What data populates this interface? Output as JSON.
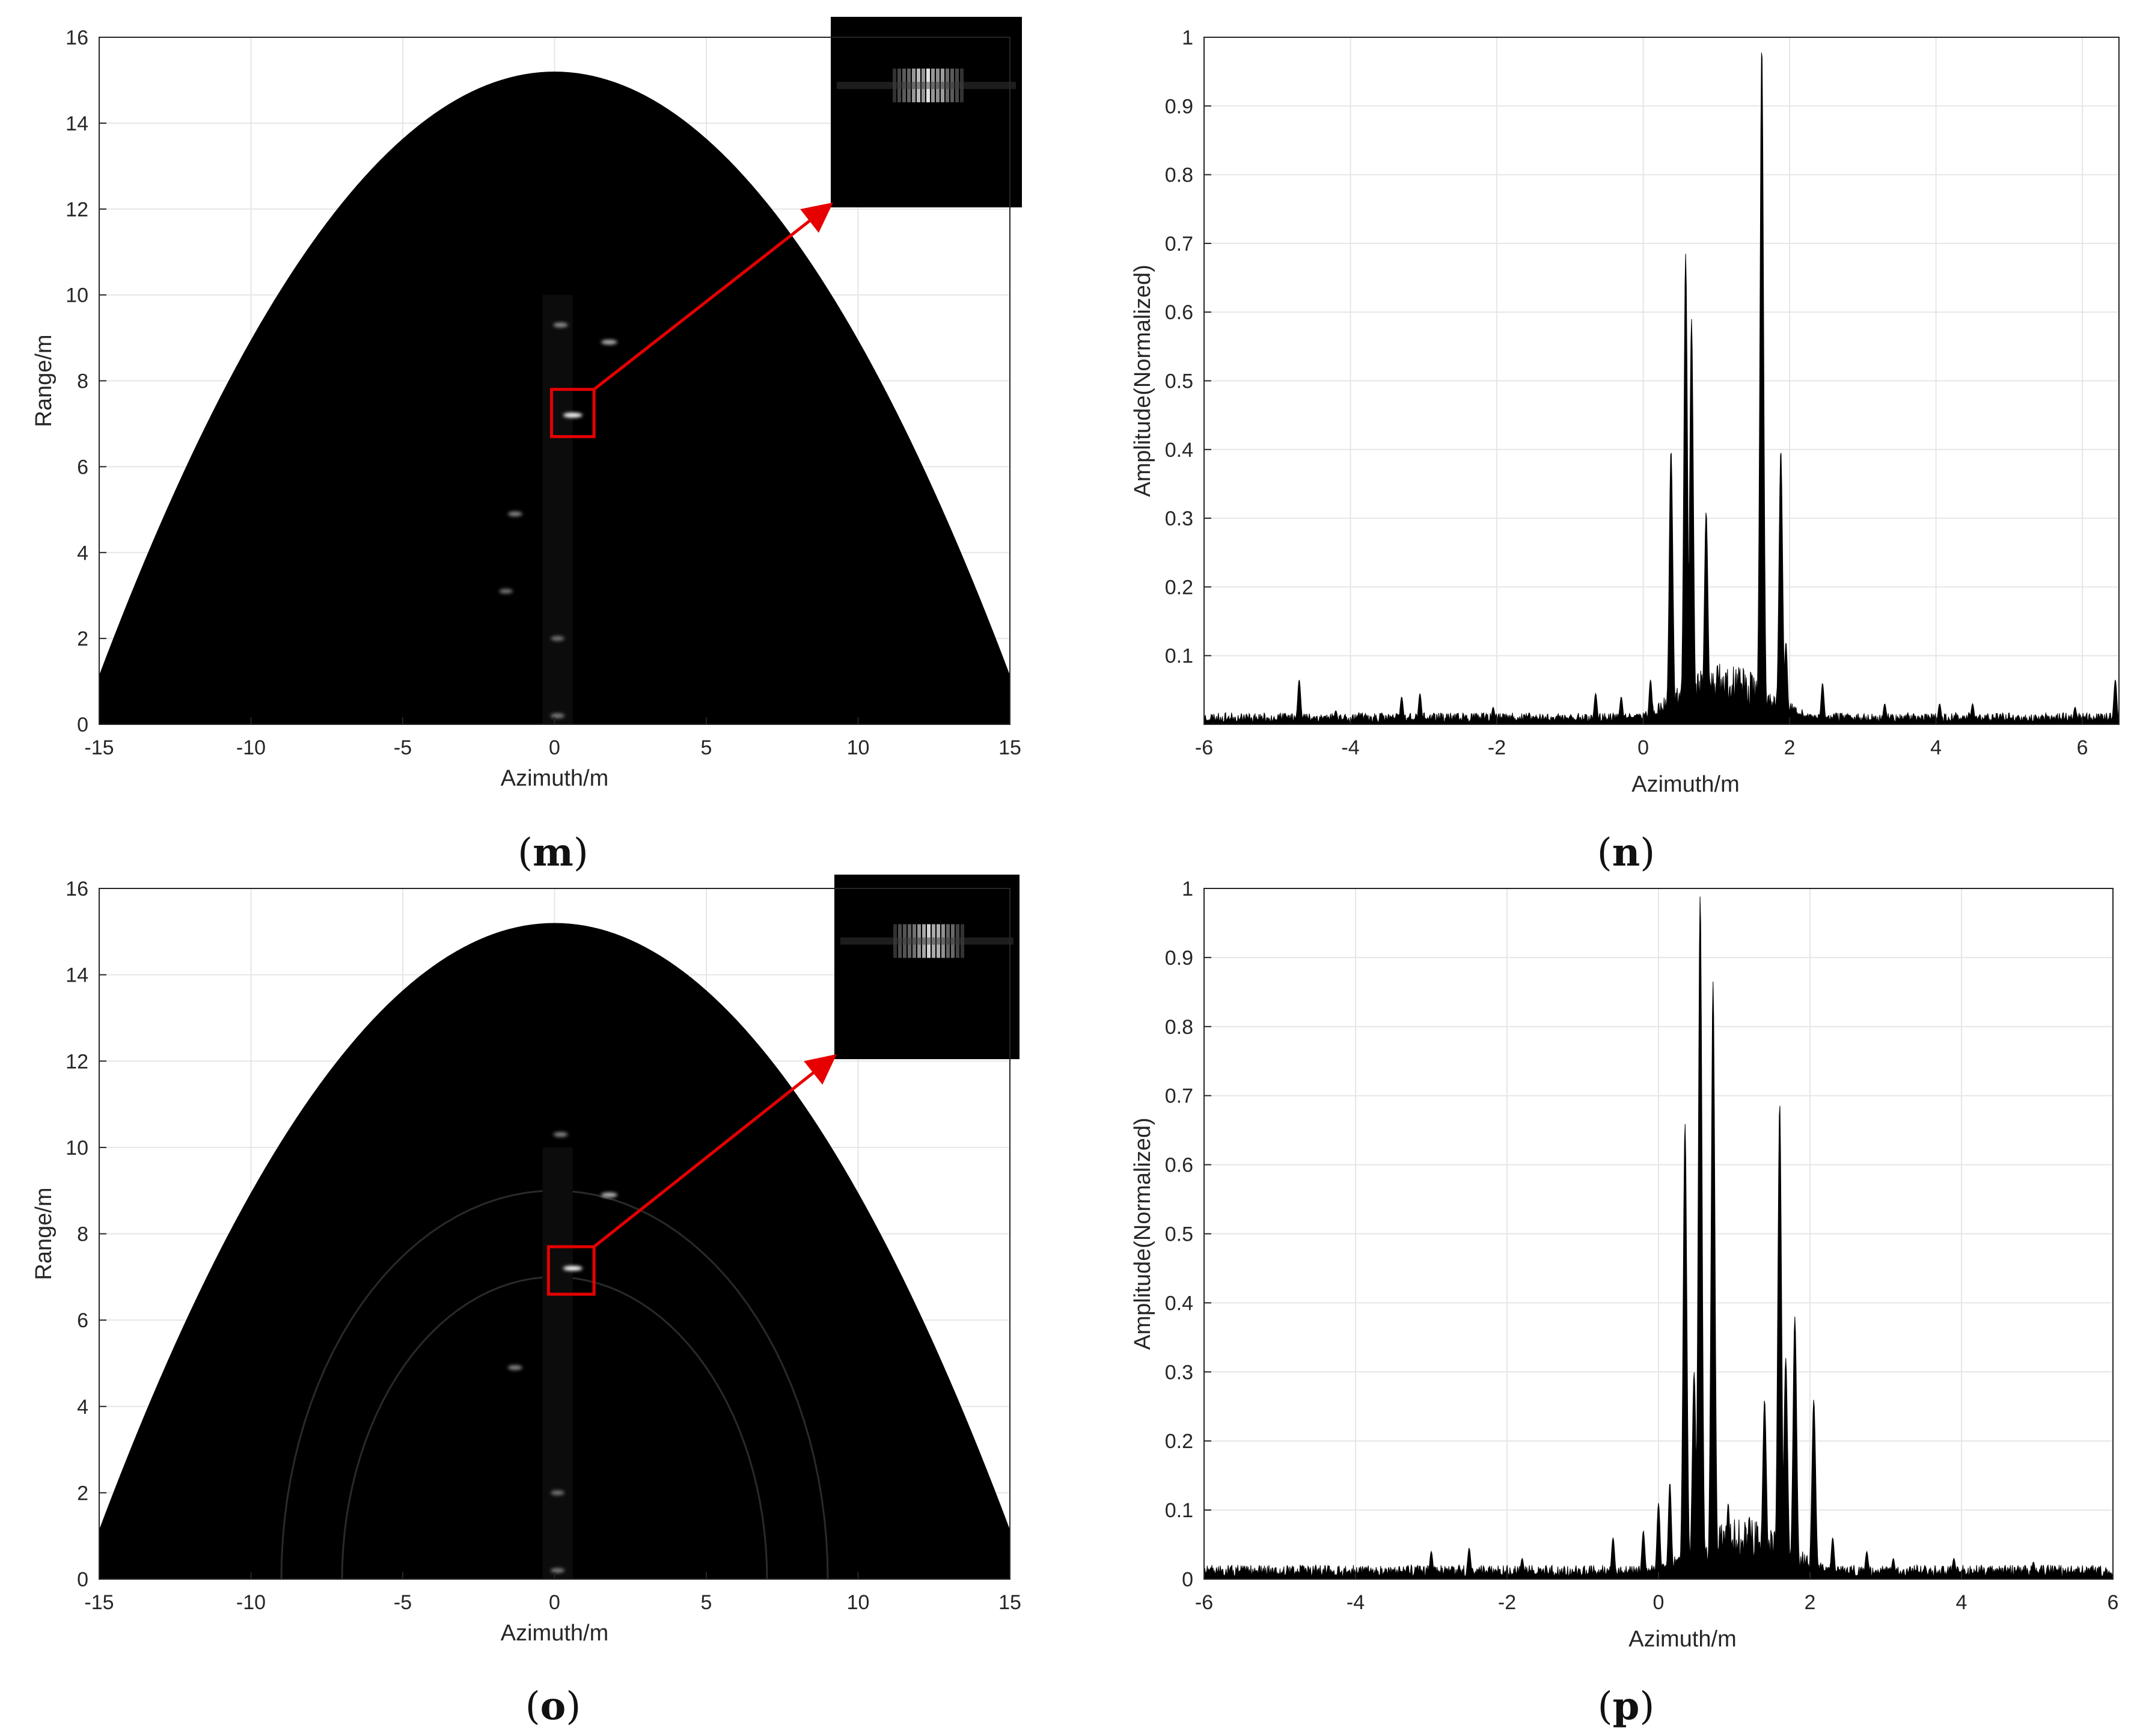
{
  "chart_data": [
    {
      "type": "heatmap",
      "panel_label": "m",
      "xlabel": "Azimuth/m",
      "ylabel": "Range/m",
      "xlim": [
        -15,
        15
      ],
      "ylim": [
        0,
        16
      ],
      "xticks": [
        "-15",
        "-10",
        "-5",
        "0",
        "5",
        "10",
        "15"
      ],
      "yticks": [
        "0",
        "2",
        "4",
        "6",
        "8",
        "10",
        "12",
        "14",
        "16"
      ],
      "grid": true,
      "colormap": "gray",
      "imaging_region_max_range": 15.2,
      "highlight_box": {
        "x": [
          -0.1,
          1.3
        ],
        "y": [
          6.7,
          7.8
        ]
      },
      "inset": "zoom of highlighted target (upper right)",
      "bright_points": [
        {
          "x": 0.6,
          "y": 7.2,
          "intensity": 1.0
        },
        {
          "x": 1.8,
          "y": 8.9,
          "intensity": 0.55
        },
        {
          "x": 0.2,
          "y": 9.3,
          "intensity": 0.35
        },
        {
          "x": -1.3,
          "y": 4.9,
          "intensity": 0.3
        },
        {
          "x": -1.6,
          "y": 3.1,
          "intensity": 0.2
        },
        {
          "x": 0.1,
          "y": 2.0,
          "intensity": 0.2
        },
        {
          "x": 0.1,
          "y": 0.2,
          "intensity": 0.25
        }
      ],
      "arcs": []
    },
    {
      "type": "area",
      "panel_label": "n",
      "xlabel": "Azimuth/m",
      "ylabel": "Amplitude(Normalized)",
      "xlim": [
        -6,
        6.5
      ],
      "ylim": [
        0,
        1
      ],
      "xticks": [
        "-6",
        "-4",
        "-2",
        "0",
        "2",
        "4",
        "6"
      ],
      "yticks": [
        "0.1",
        "0.2",
        "0.3",
        "0.4",
        "0.5",
        "0.6",
        "0.7",
        "0.8",
        "0.9",
        "1"
      ],
      "grid": true,
      "color": "#000000",
      "baseline_noise": 0.01,
      "peaks": [
        {
          "x": -4.7,
          "y": 0.065
        },
        {
          "x": -4.2,
          "y": 0.02
        },
        {
          "x": -3.3,
          "y": 0.04
        },
        {
          "x": -3.05,
          "y": 0.045
        },
        {
          "x": -2.05,
          "y": 0.025
        },
        {
          "x": -0.65,
          "y": 0.045
        },
        {
          "x": -0.3,
          "y": 0.04
        },
        {
          "x": 0.1,
          "y": 0.065
        },
        {
          "x": 0.38,
          "y": 0.4
        },
        {
          "x": 0.58,
          "y": 0.685
        },
        {
          "x": 0.66,
          "y": 0.59
        },
        {
          "x": 0.86,
          "y": 0.31
        },
        {
          "x": 1.32,
          "y": 0.05
        },
        {
          "x": 1.62,
          "y": 0.99
        },
        {
          "x": 1.88,
          "y": 0.4
        },
        {
          "x": 1.95,
          "y": 0.12
        },
        {
          "x": 2.45,
          "y": 0.06
        },
        {
          "x": 3.3,
          "y": 0.03
        },
        {
          "x": 4.05,
          "y": 0.03
        },
        {
          "x": 4.5,
          "y": 0.03
        },
        {
          "x": 5.9,
          "y": 0.025
        },
        {
          "x": 6.45,
          "y": 0.065
        }
      ]
    },
    {
      "type": "heatmap",
      "panel_label": "o",
      "xlabel": "Azimuth/m",
      "ylabel": "Range/m",
      "xlim": [
        -15,
        15
      ],
      "ylim": [
        0,
        16
      ],
      "xticks": [
        "-15",
        "-10",
        "-5",
        "0",
        "5",
        "10",
        "15"
      ],
      "yticks": [
        "0",
        "2",
        "4",
        "6",
        "8",
        "10",
        "12",
        "14",
        "16"
      ],
      "grid": true,
      "colormap": "gray",
      "imaging_region_max_range": 15.2,
      "highlight_box": {
        "x": [
          -0.2,
          1.3
        ],
        "y": [
          6.6,
          7.7
        ]
      },
      "inset": "zoom of highlighted target (upper right)",
      "bright_points": [
        {
          "x": 0.6,
          "y": 7.2,
          "intensity": 1.0
        },
        {
          "x": 1.8,
          "y": 8.9,
          "intensity": 0.6
        },
        {
          "x": 0.2,
          "y": 10.3,
          "intensity": 0.3
        },
        {
          "x": -1.3,
          "y": 4.9,
          "intensity": 0.3
        },
        {
          "x": 0.1,
          "y": 2.0,
          "intensity": 0.2
        },
        {
          "x": 0.1,
          "y": 0.2,
          "intensity": 0.25
        }
      ],
      "arcs": [
        9.0,
        7.0
      ]
    },
    {
      "type": "area",
      "panel_label": "p",
      "xlabel": "Azimuth/m",
      "ylabel": "Amplitude(Normalized)",
      "xlim": [
        -6,
        6
      ],
      "ylim": [
        0,
        1
      ],
      "xticks": [
        "-6",
        "-4",
        "-2",
        "0",
        "2",
        "4",
        "6"
      ],
      "yticks": [
        "0",
        "0.1",
        "0.2",
        "0.3",
        "0.4",
        "0.5",
        "0.6",
        "0.7",
        "0.8",
        "0.9",
        "1"
      ],
      "grid": true,
      "color": "#000000",
      "baseline_noise": 0.012,
      "peaks": [
        {
          "x": -4.7,
          "y": 0.02
        },
        {
          "x": -3.0,
          "y": 0.04
        },
        {
          "x": -2.5,
          "y": 0.045
        },
        {
          "x": -1.8,
          "y": 0.03
        },
        {
          "x": -0.6,
          "y": 0.06
        },
        {
          "x": -0.2,
          "y": 0.07
        },
        {
          "x": 0.0,
          "y": 0.11
        },
        {
          "x": 0.15,
          "y": 0.14
        },
        {
          "x": 0.35,
          "y": 0.66
        },
        {
          "x": 0.47,
          "y": 0.3
        },
        {
          "x": 0.55,
          "y": 0.99
        },
        {
          "x": 0.72,
          "y": 0.865
        },
        {
          "x": 0.92,
          "y": 0.11
        },
        {
          "x": 1.2,
          "y": 0.09
        },
        {
          "x": 1.4,
          "y": 0.26
        },
        {
          "x": 1.6,
          "y": 0.69
        },
        {
          "x": 1.68,
          "y": 0.32
        },
        {
          "x": 1.8,
          "y": 0.38
        },
        {
          "x": 2.05,
          "y": 0.26
        },
        {
          "x": 2.3,
          "y": 0.06
        },
        {
          "x": 2.75,
          "y": 0.04
        },
        {
          "x": 3.1,
          "y": 0.03
        },
        {
          "x": 3.9,
          "y": 0.03
        },
        {
          "x": 4.95,
          "y": 0.025
        }
      ]
    }
  ]
}
